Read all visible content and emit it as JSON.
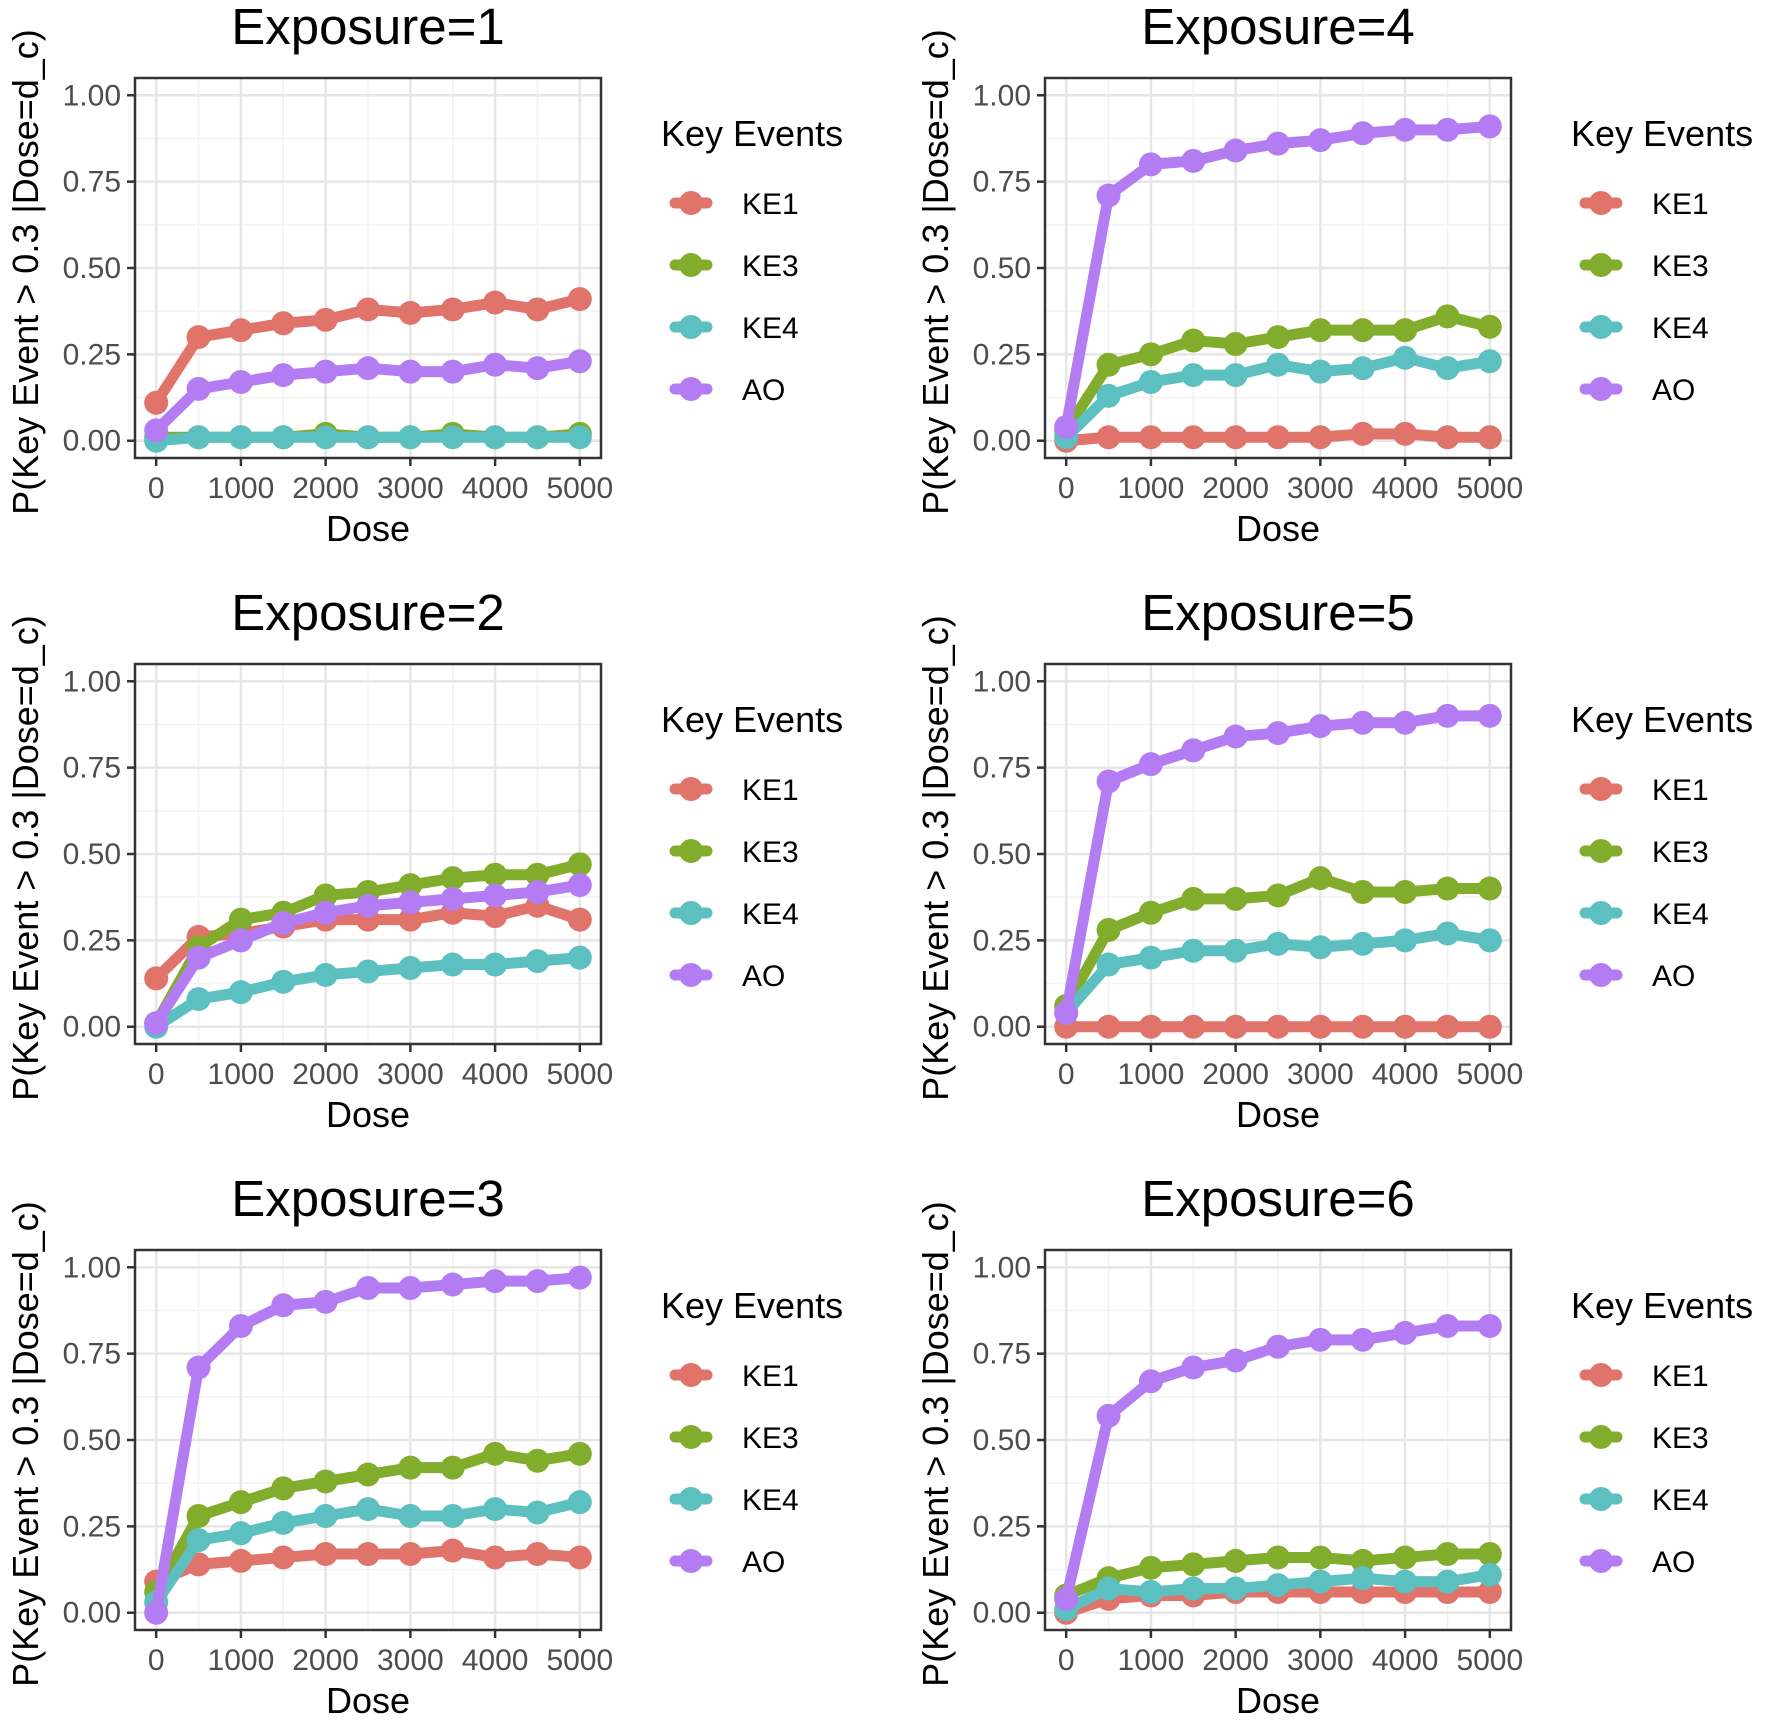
{
  "figure": {
    "shared": {
      "xlabel": "Dose",
      "ylabel": "P(Key Event > 0.3 |Dose=d_c)",
      "legend_title": "Key Events",
      "xlim": [
        -250,
        5250
      ],
      "ylim": [
        -0.05,
        1.05
      ],
      "x_ticks": [
        0,
        1000,
        2000,
        3000,
        4000,
        5000
      ],
      "x_tick_labels": [
        "0",
        "1000",
        "2000",
        "3000",
        "4000",
        "5000"
      ],
      "y_ticks": [
        0,
        0.25,
        0.5,
        0.75,
        1.0
      ],
      "y_tick_labels": [
        "0.00",
        "0.25",
        "0.50",
        "0.75",
        "1.00"
      ],
      "series_colors": {
        "KE1": "#E0736A",
        "KE3": "#82AD2C",
        "KE4": "#5CBFC0",
        "AO": "#B47CF2"
      },
      "legend_position": "right"
    }
  },
  "chart_data": [
    {
      "type": "line",
      "title": "Exposure=1",
      "xlabel": "Dose",
      "ylabel": "P(Key Event > 0.3 |Dose=d_c)",
      "legend_title": "Key Events",
      "x": [
        0,
        500,
        1000,
        1500,
        2000,
        2500,
        3000,
        3500,
        4000,
        4500,
        5000
      ],
      "series": [
        {
          "name": "KE1",
          "values": [
            0.11,
            0.3,
            0.32,
            0.34,
            0.35,
            0.38,
            0.37,
            0.38,
            0.4,
            0.38,
            0.41
          ]
        },
        {
          "name": "KE3",
          "values": [
            0.01,
            0.01,
            0.01,
            0.01,
            0.02,
            0.01,
            0.01,
            0.02,
            0.01,
            0.01,
            0.02
          ]
        },
        {
          "name": "KE4",
          "values": [
            0.0,
            0.01,
            0.01,
            0.01,
            0.01,
            0.01,
            0.01,
            0.01,
            0.01,
            0.01,
            0.01
          ]
        },
        {
          "name": "AO",
          "values": [
            0.03,
            0.15,
            0.17,
            0.19,
            0.2,
            0.21,
            0.2,
            0.2,
            0.22,
            0.21,
            0.23
          ]
        }
      ]
    },
    {
      "type": "line",
      "title": "Exposure=4",
      "xlabel": "Dose",
      "ylabel": "P(Key Event > 0.3 |Dose=d_c)",
      "legend_title": "Key Events",
      "x": [
        0,
        500,
        1000,
        1500,
        2000,
        2500,
        3000,
        3500,
        4000,
        4500,
        5000
      ],
      "series": [
        {
          "name": "KE1",
          "values": [
            0.0,
            0.01,
            0.01,
            0.01,
            0.01,
            0.01,
            0.01,
            0.02,
            0.02,
            0.01,
            0.01
          ]
        },
        {
          "name": "KE3",
          "values": [
            0.03,
            0.22,
            0.25,
            0.29,
            0.28,
            0.3,
            0.32,
            0.32,
            0.32,
            0.36,
            0.33
          ]
        },
        {
          "name": "KE4",
          "values": [
            0.01,
            0.13,
            0.17,
            0.19,
            0.19,
            0.22,
            0.2,
            0.21,
            0.24,
            0.21,
            0.23
          ]
        },
        {
          "name": "AO",
          "values": [
            0.04,
            0.71,
            0.8,
            0.81,
            0.84,
            0.86,
            0.87,
            0.89,
            0.9,
            0.9,
            0.91
          ]
        }
      ]
    },
    {
      "type": "line",
      "title": "Exposure=2",
      "xlabel": "Dose",
      "ylabel": "P(Key Event > 0.3 |Dose=d_c)",
      "legend_title": "Key Events",
      "x": [
        0,
        500,
        1000,
        1500,
        2000,
        2500,
        3000,
        3500,
        4000,
        4500,
        5000
      ],
      "series": [
        {
          "name": "KE1",
          "values": [
            0.14,
            0.26,
            0.27,
            0.29,
            0.31,
            0.31,
            0.31,
            0.33,
            0.32,
            0.35,
            0.31
          ]
        },
        {
          "name": "KE3",
          "values": [
            0.01,
            0.23,
            0.31,
            0.33,
            0.38,
            0.39,
            0.41,
            0.43,
            0.44,
            0.44,
            0.47
          ]
        },
        {
          "name": "KE4",
          "values": [
            0.0,
            0.08,
            0.1,
            0.13,
            0.15,
            0.16,
            0.17,
            0.18,
            0.18,
            0.19,
            0.2
          ]
        },
        {
          "name": "AO",
          "values": [
            0.01,
            0.2,
            0.25,
            0.3,
            0.33,
            0.35,
            0.36,
            0.37,
            0.38,
            0.39,
            0.41
          ]
        }
      ]
    },
    {
      "type": "line",
      "title": "Exposure=5",
      "xlabel": "Dose",
      "ylabel": "P(Key Event > 0.3 |Dose=d_c)",
      "legend_title": "Key Events",
      "x": [
        0,
        500,
        1000,
        1500,
        2000,
        2500,
        3000,
        3500,
        4000,
        4500,
        5000
      ],
      "series": [
        {
          "name": "KE1",
          "values": [
            0.0,
            0.0,
            0.0,
            0.0,
            0.0,
            0.0,
            0.0,
            0.0,
            0.0,
            0.0,
            0.0
          ]
        },
        {
          "name": "KE3",
          "values": [
            0.06,
            0.28,
            0.33,
            0.37,
            0.37,
            0.38,
            0.43,
            0.39,
            0.39,
            0.4,
            0.4
          ]
        },
        {
          "name": "KE4",
          "values": [
            0.04,
            0.18,
            0.2,
            0.22,
            0.22,
            0.24,
            0.23,
            0.24,
            0.25,
            0.27,
            0.25
          ]
        },
        {
          "name": "AO",
          "values": [
            0.04,
            0.71,
            0.76,
            0.8,
            0.84,
            0.85,
            0.87,
            0.88,
            0.88,
            0.9,
            0.9
          ]
        }
      ]
    },
    {
      "type": "line",
      "title": "Exposure=3",
      "xlabel": "Dose",
      "ylabel": "P(Key Event > 0.3 |Dose=d_c)",
      "legend_title": "Key Events",
      "x": [
        0,
        500,
        1000,
        1500,
        2000,
        2500,
        3000,
        3500,
        4000,
        4500,
        5000
      ],
      "series": [
        {
          "name": "KE1",
          "values": [
            0.09,
            0.14,
            0.15,
            0.16,
            0.17,
            0.17,
            0.17,
            0.18,
            0.16,
            0.17,
            0.16
          ]
        },
        {
          "name": "KE3",
          "values": [
            0.06,
            0.28,
            0.32,
            0.36,
            0.38,
            0.4,
            0.42,
            0.42,
            0.46,
            0.44,
            0.46
          ]
        },
        {
          "name": "KE4",
          "values": [
            0.03,
            0.21,
            0.23,
            0.26,
            0.28,
            0.3,
            0.28,
            0.28,
            0.3,
            0.29,
            0.32
          ]
        },
        {
          "name": "AO",
          "values": [
            0.0,
            0.71,
            0.83,
            0.89,
            0.9,
            0.94,
            0.94,
            0.95,
            0.96,
            0.96,
            0.97
          ]
        }
      ]
    },
    {
      "type": "line",
      "title": "Exposure=6",
      "xlabel": "Dose",
      "ylabel": "P(Key Event > 0.3 |Dose=d_c)",
      "legend_title": "Key Events",
      "x": [
        0,
        500,
        1000,
        1500,
        2000,
        2500,
        3000,
        3500,
        4000,
        4500,
        5000
      ],
      "series": [
        {
          "name": "KE1",
          "values": [
            0.0,
            0.04,
            0.05,
            0.05,
            0.06,
            0.06,
            0.06,
            0.06,
            0.06,
            0.06,
            0.06
          ]
        },
        {
          "name": "KE3",
          "values": [
            0.05,
            0.1,
            0.13,
            0.14,
            0.15,
            0.16,
            0.16,
            0.15,
            0.16,
            0.17,
            0.17
          ]
        },
        {
          "name": "KE4",
          "values": [
            0.01,
            0.07,
            0.06,
            0.07,
            0.07,
            0.08,
            0.09,
            0.1,
            0.09,
            0.09,
            0.11
          ]
        },
        {
          "name": "AO",
          "values": [
            0.04,
            0.57,
            0.67,
            0.71,
            0.73,
            0.77,
            0.79,
            0.79,
            0.81,
            0.83,
            0.83
          ]
        }
      ]
    }
  ]
}
